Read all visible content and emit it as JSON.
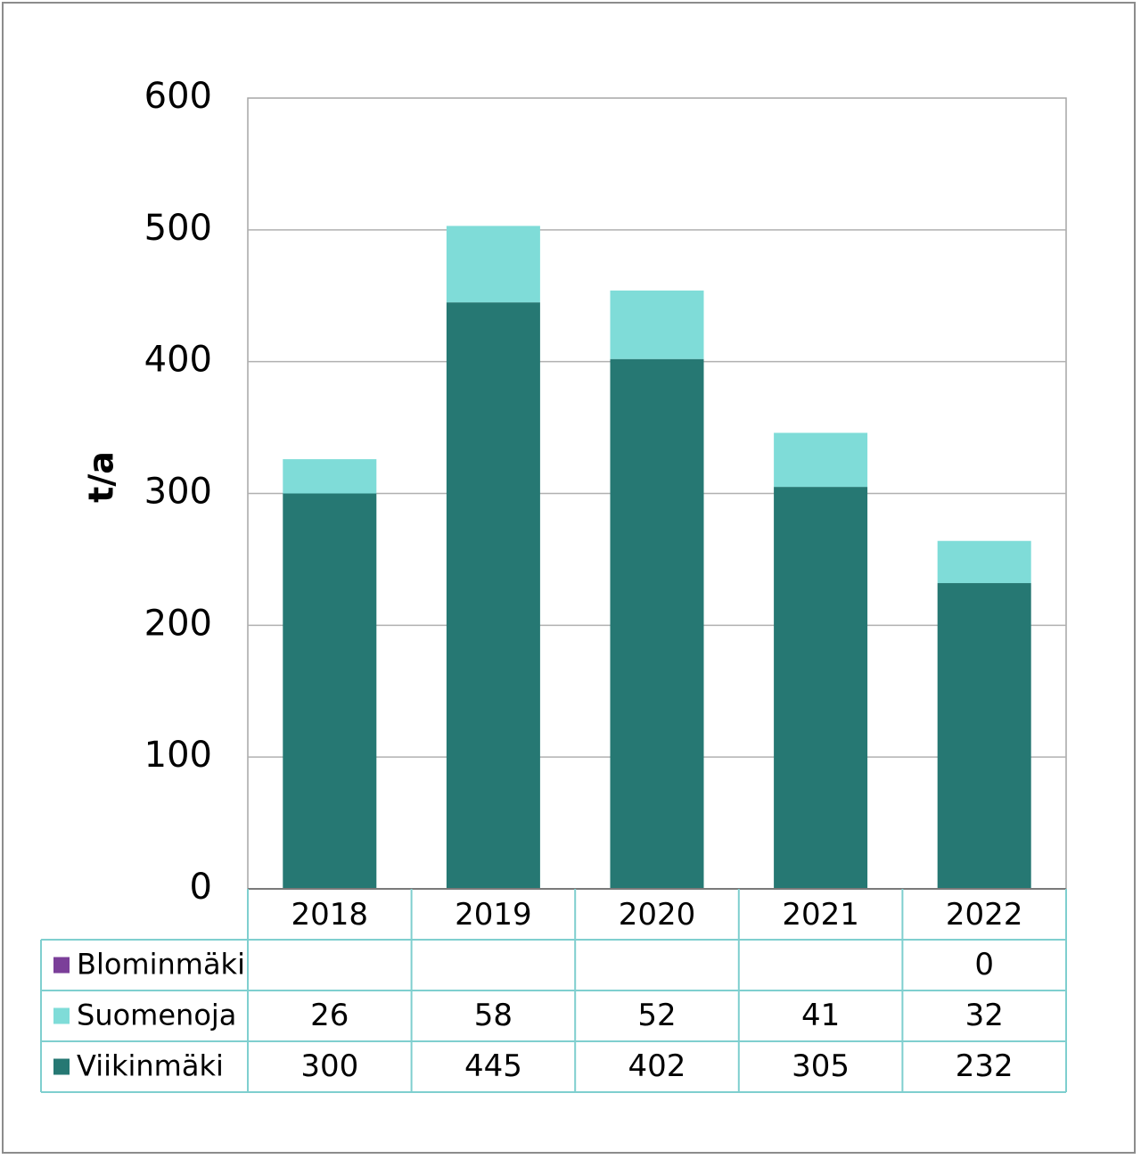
{
  "chart_data": {
    "type": "bar",
    "stacked": true,
    "categories": [
      "2018",
      "2019",
      "2020",
      "2021",
      "2022"
    ],
    "ylabel": "t/a",
    "ylim": [
      0,
      600
    ],
    "yticks": [
      "0",
      "100",
      "200",
      "300",
      "400",
      "500",
      "600"
    ],
    "grid": true,
    "legend_placement": "data-table-left",
    "series": [
      {
        "name": "Blominmäki",
        "color": "#7b3f99",
        "values": [
          null,
          null,
          null,
          null,
          0
        ]
      },
      {
        "name": "Suomenoja",
        "color": "#7fdcd8",
        "values": [
          26,
          58,
          52,
          41,
          32
        ]
      },
      {
        "name": "Viikinmäki",
        "color": "#267873",
        "values": [
          300,
          445,
          402,
          305,
          232
        ]
      }
    ]
  }
}
